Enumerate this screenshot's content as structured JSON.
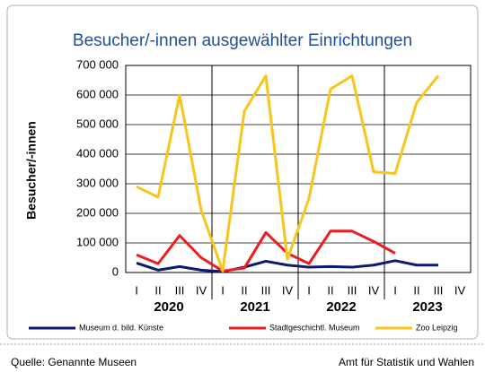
{
  "chart_data": {
    "type": "line",
    "title": "Besucher/-innen ausgewählter Einrichtungen",
    "y_label": "Besucher/-innen",
    "categories": [
      "I",
      "II",
      "III",
      "IV",
      "I",
      "II",
      "III",
      "IV",
      "I",
      "II",
      "III",
      "IV",
      "I",
      "II",
      "III",
      "IV"
    ],
    "years": [
      "2020",
      "2021",
      "2022",
      "2023"
    ],
    "series": [
      {
        "name": "Museum d. bild. Künste",
        "color": "#0d1a6e",
        "values": [
          32000,
          8000,
          20000,
          8000,
          3000,
          18000,
          38000,
          25000,
          18000,
          20000,
          18000,
          25000,
          40000,
          25000,
          25000,
          null
        ]
      },
      {
        "name": "Stadtgeschichtl. Museum",
        "color": "#ee1c1c",
        "values": [
          60000,
          30000,
          125000,
          50000,
          5000,
          15000,
          135000,
          65000,
          30000,
          140000,
          140000,
          105000,
          65000,
          null,
          null,
          null
        ]
      },
      {
        "name": "Zoo Leipzig",
        "color": "#f7c51b",
        "values": [
          290000,
          255000,
          600000,
          210000,
          5000,
          545000,
          665000,
          45000,
          250000,
          620000,
          665000,
          340000,
          335000,
          575000,
          665000,
          null
        ]
      }
    ],
    "ylim": [
      0,
      700000
    ],
    "yticks": [
      0,
      {
        "value": 100000,
        "label": "100 000"
      },
      {
        "value": 200000,
        "label": "200 000"
      },
      {
        "value": 300000,
        "label": "300 000"
      },
      {
        "value": 400000,
        "label": "400 000"
      },
      {
        "value": 500000,
        "label": "500 000"
      },
      {
        "value": 600000,
        "label": "600 000"
      },
      {
        "value": 700000,
        "label": "700 000"
      }
    ],
    "grid": true,
    "legend": "bottom",
    "footer_left": "Quelle: Genannte Museen",
    "footer_right": "Amt für Statistik und Wahlen"
  }
}
